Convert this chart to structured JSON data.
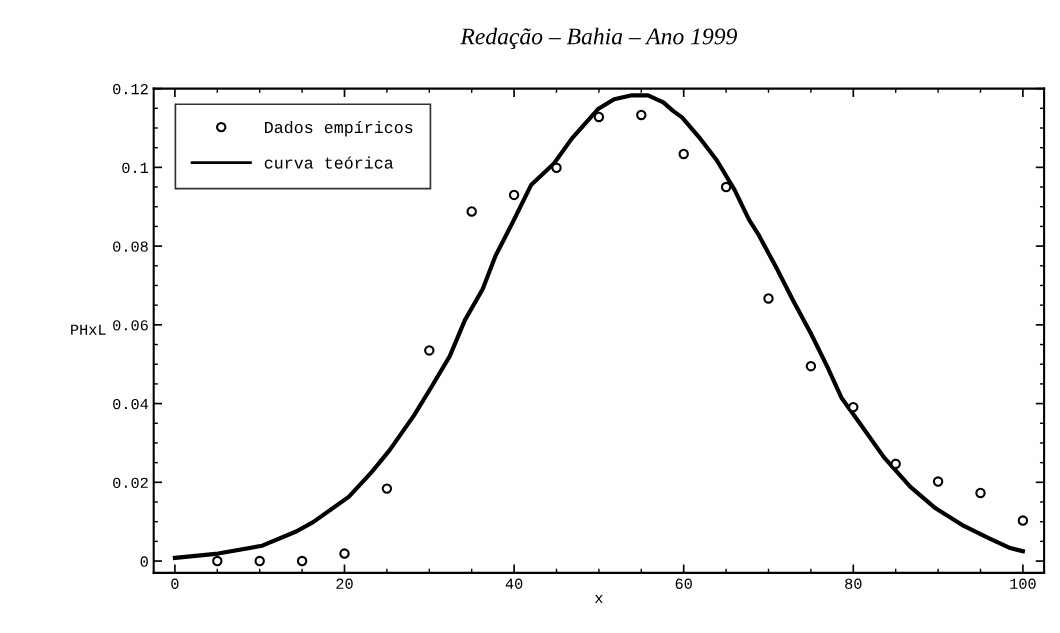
{
  "chart_data": {
    "type": "scatter",
    "title": "Redação – Bahia – Ano 1999",
    "xlabel": "x",
    "ylabel": "PHxL",
    "xlim": [
      -2.5,
      102.5
    ],
    "ylim": [
      -0.003,
      0.12
    ],
    "xticks": [
      0,
      20,
      40,
      60,
      80,
      100
    ],
    "yticks": [
      0,
      0.02,
      0.04,
      0.06,
      0.08,
      0.1,
      0.12
    ],
    "legend": "top left",
    "grid": false,
    "series": [
      {
        "name": "Dados empíricos",
        "marker": "circle",
        "color": "#000000",
        "x": [
          5,
          10,
          15,
          20,
          25,
          30,
          35,
          40,
          45,
          50,
          55,
          60,
          65,
          70,
          75,
          80,
          85,
          90,
          95,
          100
        ],
        "values": [
          0,
          0,
          0,
          0.0019,
          0.0184,
          0.0535,
          0.0888,
          0.093,
          0.0999,
          0.1128,
          0.1133,
          0.1034,
          0.095,
          0.0667,
          0.0495,
          0.0391,
          0.0247,
          0.0202,
          0.0173,
          0.0103
        ]
      },
      {
        "name": "curva teórica",
        "type": "line",
        "line_style": "solid",
        "marker": "none",
        "color": "#000000",
        "x": [
          0,
          5.1,
          10.3,
          14.3,
          16.3,
          20.5,
          23.2,
          25.3,
          28.2,
          30.3,
          32.4,
          34.2,
          36.3,
          37.8,
          39.9,
          42.0,
          44.7,
          46.8,
          49.9,
          51.8,
          53.9,
          55.8,
          57.6,
          58.7,
          59.8,
          61.8,
          63.9,
          66.0,
          67.7,
          68.8,
          70.9,
          72.9,
          75.0,
          76.9,
          78.6,
          80.7,
          83.6,
          86.7,
          89.7,
          92.8,
          95.9,
          98.5,
          100
        ],
        "values": [
          0.0008,
          0.0019,
          0.0039,
          0.0075,
          0.0099,
          0.0163,
          0.0226,
          0.0281,
          0.037,
          0.0444,
          0.052,
          0.0612,
          0.0691,
          0.0775,
          0.0863,
          0.0955,
          0.101,
          0.1073,
          0.1148,
          0.1173,
          0.1183,
          0.1183,
          0.1165,
          0.1144,
          0.1127,
          0.1077,
          0.1018,
          0.0943,
          0.0867,
          0.083,
          0.0746,
          0.0662,
          0.0578,
          0.0495,
          0.0415,
          0.0352,
          0.0264,
          0.0189,
          0.0134,
          0.0092,
          0.0059,
          0.0033,
          0.0025
        ]
      }
    ]
  }
}
